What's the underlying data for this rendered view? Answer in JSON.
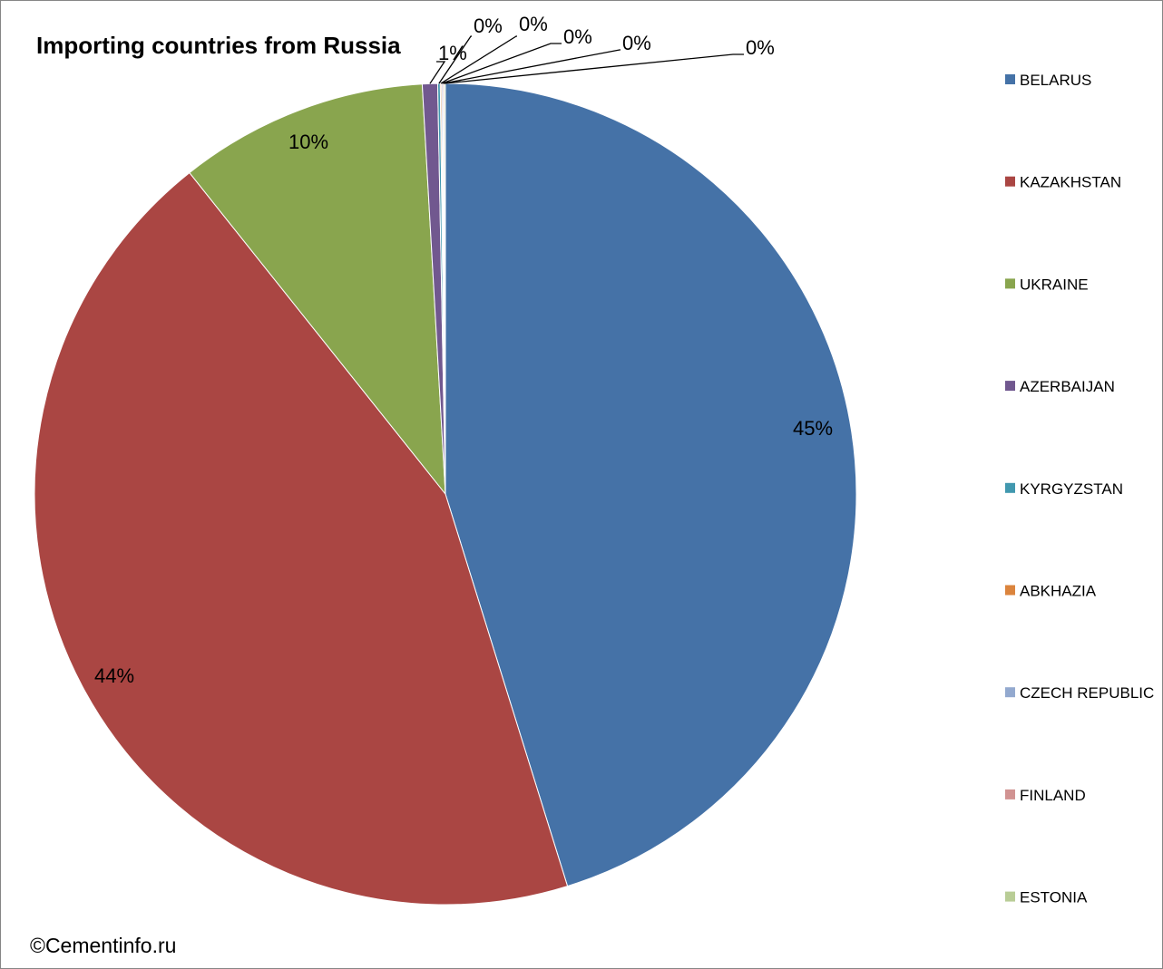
{
  "chart_data": {
    "type": "pie",
    "title": "Importing countries from Russia",
    "legend_position": "right",
    "categories": [
      "BELARUS",
      "KAZAKHSTAN",
      "UKRAINE",
      "AZERBAIJAN",
      "KYRGYZSTAN",
      "ABKHAZIA",
      "CZECH REPUBLIC",
      "FINLAND",
      "ESTONIA"
    ],
    "values": [
      45.2,
      44.1,
      9.8,
      0.6,
      0.1,
      0.05,
      0.05,
      0.05,
      0.05
    ],
    "data_labels": [
      "45%",
      "44%",
      "10%",
      "1%",
      "0%",
      "0%",
      "0%",
      "0%",
      "0%"
    ],
    "colors": [
      "#4572a7",
      "#aa4643",
      "#89a54e",
      "#71588f",
      "#4198af",
      "#db843d",
      "#93a9cf",
      "#d19392",
      "#b9cd96"
    ]
  },
  "credit": "©Cementinfo.ru"
}
